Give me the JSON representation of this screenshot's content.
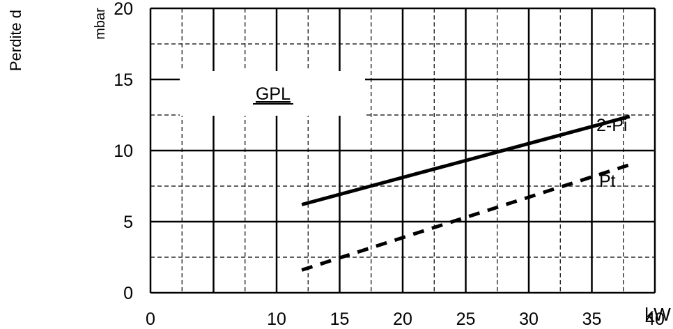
{
  "chart_data": {
    "type": "line",
    "title": "GPL",
    "ylabel": "Perdite d",
    "yunit": "mbar",
    "xunit": "kW",
    "xlim": [
      0,
      40
    ],
    "ylim": [
      0,
      20
    ],
    "x_ticks": [
      0,
      10,
      15,
      20,
      25,
      30,
      35,
      40
    ],
    "y_ticks": [
      0,
      5,
      10,
      15,
      20
    ],
    "grid": true,
    "series": [
      {
        "name": "2-Pi",
        "style": "solid",
        "color": "#000000",
        "x": [
          12,
          38
        ],
        "y": [
          6.2,
          12.4
        ]
      },
      {
        "name": "Pt",
        "style": "dashed",
        "color": "#000000",
        "x": [
          12,
          38
        ],
        "y": [
          1.6,
          9.0
        ]
      }
    ]
  }
}
